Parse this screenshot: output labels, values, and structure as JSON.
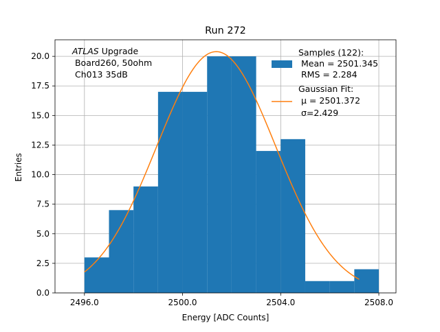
{
  "chart_data": {
    "type": "bar",
    "title": "Run 272",
    "xlabel": "Energy [ADC Counts]",
    "ylabel": "Entries",
    "xlim": [
      2494.8,
      2508.7
    ],
    "ylim": [
      0,
      21.4
    ],
    "grid": true,
    "x_ticks": [
      2496.0,
      2500.0,
      2504.0,
      2508.0
    ],
    "x_tick_labels": [
      "2496.0",
      "2500.0",
      "2504.0",
      "2508.0"
    ],
    "y_ticks": [
      0.0,
      2.5,
      5.0,
      7.5,
      10.0,
      12.5,
      15.0,
      17.5,
      20.0
    ],
    "y_tick_labels": [
      "0.0",
      "2.5",
      "5.0",
      "7.5",
      "10.0",
      "12.5",
      "15.0",
      "17.5",
      "20.0"
    ],
    "histogram": {
      "bin_edges": [
        2496,
        2497,
        2498,
        2499,
        2500,
        2501,
        2502,
        2503,
        2504,
        2505,
        2506,
        2507,
        2508
      ],
      "counts": [
        3,
        7,
        9,
        17,
        17,
        20,
        20,
        12,
        13,
        1,
        1,
        2
      ],
      "color": "#1f77b4"
    },
    "fit": {
      "mu": 2501.372,
      "sigma": 2.429,
      "amplitude": 20.4,
      "x_range": [
        2496.0,
        2507.2
      ],
      "color": "#ff7f0e"
    },
    "annotation": {
      "line1_italic": "ATLAS",
      "line1_rest": " Upgrade",
      "line2": " Board260, 50ohm",
      "line3": " Ch013 35dB"
    },
    "legend": {
      "placement": "top-right",
      "samples_label": "Samples (122):",
      "samples_mean": " Mean = 2501.345",
      "samples_rms": " RMS = 2.284",
      "fit_label": "Gaussian Fit:",
      "fit_mu": "μ = 2501.372",
      "fit_sigma": "σ=2.429"
    }
  }
}
